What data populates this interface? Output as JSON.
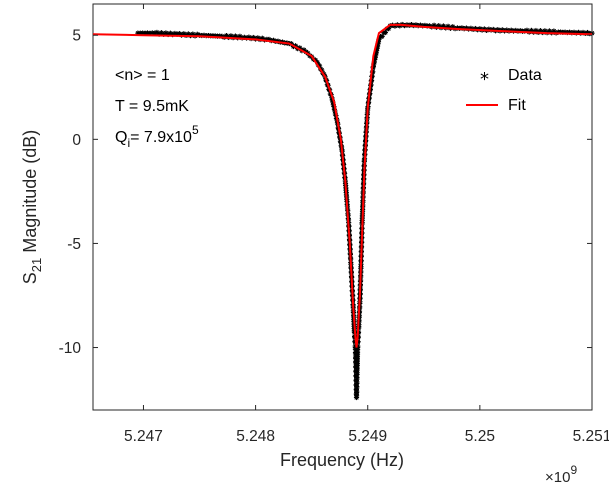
{
  "chart_data": {
    "type": "scatter",
    "title": "",
    "xlabel": "Frequency (Hz)",
    "ylabel": "S21 Magnitude (dB)",
    "ylabel_main": "S",
    "ylabel_sub": "21",
    "ylabel_rest": " Magnitude (dB)",
    "xlim": [
      5.24655,
      5.251
    ],
    "ylim": [
      -13,
      6.5
    ],
    "x_exponent_label": "×10",
    "x_exponent_power": "9",
    "xticks": [
      5.247,
      5.248,
      5.249,
      5.25,
      5.251
    ],
    "xtick_labels": [
      "5.247",
      "5.248",
      "5.249",
      "5.25",
      "5.251"
    ],
    "yticks": [
      5,
      0,
      -5,
      -10
    ],
    "ytick_labels": [
      "5",
      "0",
      "-5",
      "-10"
    ],
    "grid": false,
    "legend_position": "top-right",
    "annotations": {
      "photon_number": "<n> = 1",
      "temperature": "T = 9.5mK",
      "q_main": "Q",
      "q_sub": "i",
      "q_value": "= 7.9x10",
      "q_power": "5"
    },
    "series": [
      {
        "name": "Data",
        "marker": "*",
        "color": "#000000",
        "x": [
          5.24695,
          5.2471,
          5.2473,
          5.2475,
          5.2477,
          5.2479,
          5.2481,
          5.2483,
          5.24845,
          5.24855,
          5.24862,
          5.24868,
          5.24873,
          5.24877,
          5.2488,
          5.24883,
          5.24885,
          5.24887,
          5.24888,
          5.24889,
          5.2489,
          5.24891,
          5.24892,
          5.24893,
          5.24894,
          5.24895,
          5.24897,
          5.249,
          5.24905,
          5.2491,
          5.2492,
          5.24935,
          5.24955,
          5.2498,
          5.2501,
          5.2504,
          5.2507,
          5.251
        ],
        "y": [
          5.1,
          5.1,
          5.05,
          5.0,
          4.95,
          4.9,
          4.8,
          4.6,
          4.2,
          3.7,
          3.0,
          2.0,
          0.8,
          -0.5,
          -2.0,
          -4.0,
          -6.0,
          -8.0,
          -9.2,
          -10.0,
          -12.4,
          -10.0,
          -9.0,
          -7.8,
          -6.0,
          -4.0,
          -1.0,
          1.5,
          3.5,
          4.8,
          5.45,
          5.5,
          5.45,
          5.35,
          5.25,
          5.2,
          5.15,
          5.1
        ]
      },
      {
        "name": "Fit",
        "color": "#ff0000",
        "x": [
          5.24655,
          5.247,
          5.2475,
          5.248,
          5.2483,
          5.2485,
          5.24862,
          5.2487,
          5.24876,
          5.2488,
          5.24884,
          5.24887,
          5.24889,
          5.2489,
          5.24891,
          5.24893,
          5.24895,
          5.24897,
          5.249,
          5.24905,
          5.2491,
          5.2492,
          5.2493,
          5.2495,
          5.2498,
          5.2502,
          5.2506,
          5.251
        ],
        "y": [
          5.05,
          5.0,
          4.95,
          4.8,
          4.6,
          4.0,
          3.0,
          1.8,
          0.0,
          -2.0,
          -5.0,
          -8.0,
          -9.5,
          -10.0,
          -9.5,
          -7.5,
          -4.5,
          -1.5,
          1.5,
          4.0,
          5.1,
          5.5,
          5.5,
          5.4,
          5.3,
          5.2,
          5.1,
          5.05
        ]
      }
    ]
  }
}
